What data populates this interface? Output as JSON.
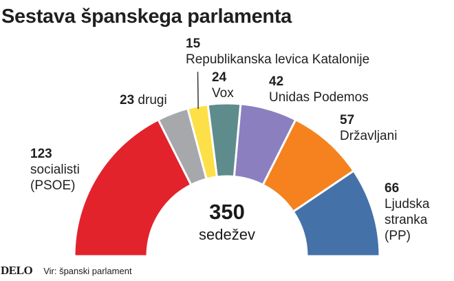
{
  "chart_data": {
    "type": "pie",
    "subtype": "semicircle",
    "title": "Sestava španskega parlamenta",
    "total": "350",
    "total_label": "sedežev",
    "slices": [
      {
        "value": 123,
        "value_label": "123",
        "name": "socialisti (PSOE)",
        "lines": [
          "socialisti",
          "(PSOE)"
        ],
        "color": "#e3232c"
      },
      {
        "value": 23,
        "value_label": "23",
        "name": "drugi",
        "lines": [
          "drugi"
        ],
        "color": "#a6a8ab"
      },
      {
        "value": 15,
        "value_label": "15",
        "name": "Republikanska levica Katalonije",
        "lines": [
          "Republikanska levica Katalonije"
        ],
        "color": "#fde047"
      },
      {
        "value": 24,
        "value_label": "24",
        "name": "Vox",
        "lines": [
          "Vox"
        ],
        "color": "#5e8c8d"
      },
      {
        "value": 42,
        "value_label": "42",
        "name": "Unidas Podemos",
        "lines": [
          "Unidas Podemos"
        ],
        "color": "#8b7fc0"
      },
      {
        "value": 57,
        "value_label": "57",
        "name": "Državljani",
        "lines": [
          "Državljani"
        ],
        "color": "#f5821f"
      },
      {
        "value": 66,
        "value_label": "66",
        "name": "Ljudska stranka (PP)",
        "lines": [
          "Ljudska",
          "stranka",
          "(PP)"
        ],
        "color": "#4472a8"
      }
    ]
  },
  "footer": {
    "logo": "DELO",
    "source": "Vir: španski parlament"
  }
}
